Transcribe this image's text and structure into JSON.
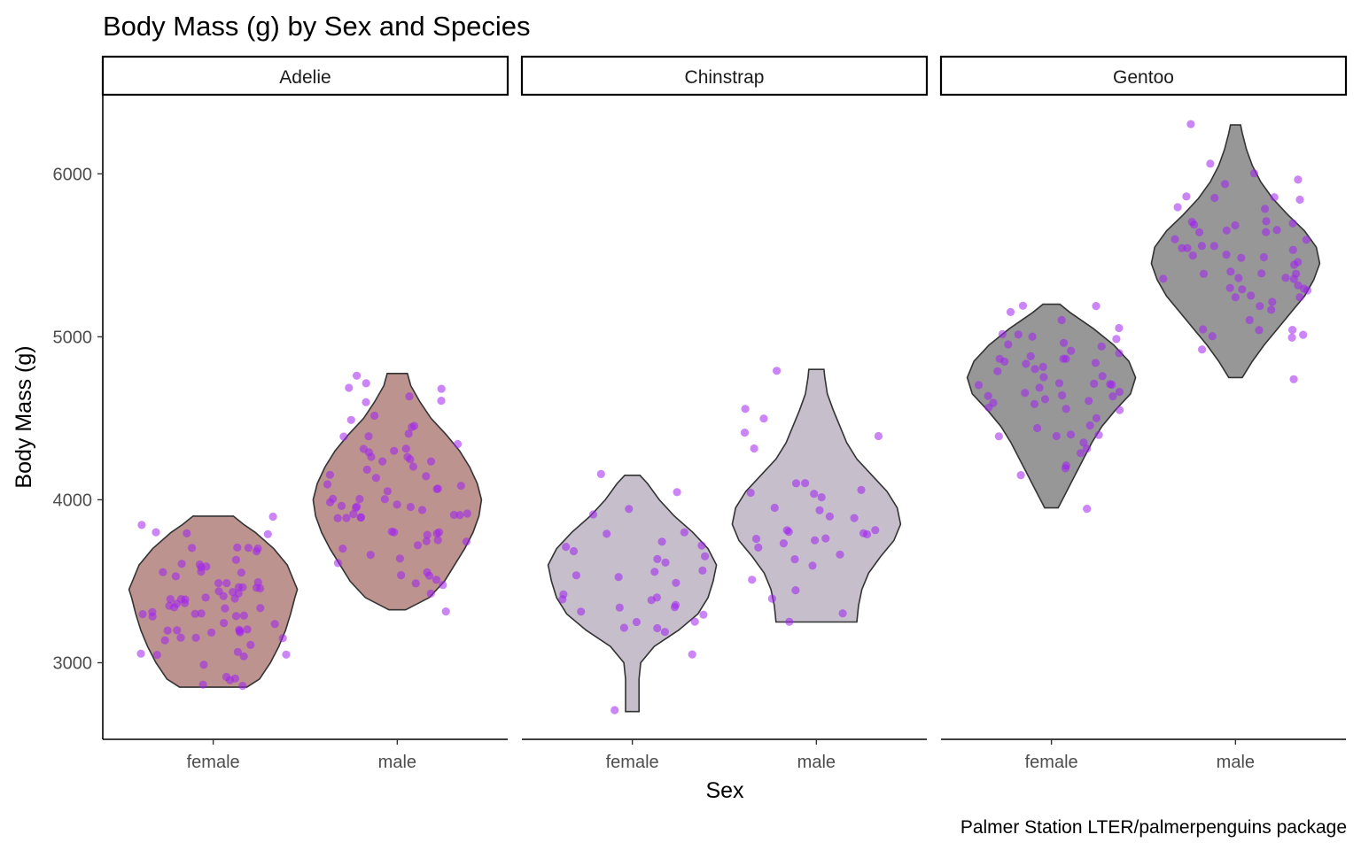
{
  "chart_data": {
    "type": "violin",
    "title": "Body Mass (g) by Sex and Species",
    "xlabel": "Sex",
    "ylabel": "Body Mass (g)",
    "caption": "Palmer Station LTER/palmerpenguins package",
    "ylim": [
      2530,
      6480
    ],
    "yticks": [
      3000,
      4000,
      5000,
      6000
    ],
    "categories": [
      "female",
      "male"
    ],
    "point_color": "#a020f0",
    "facets": [
      {
        "name": "Adelie",
        "fill": "#bc938f",
        "groups": [
          {
            "sex": "female",
            "violin": [
              [
                2850,
                0.4
              ],
              [
                2900,
                0.55
              ],
              [
                3000,
                0.68
              ],
              [
                3100,
                0.78
              ],
              [
                3200,
                0.86
              ],
              [
                3300,
                0.92
              ],
              [
                3400,
                0.97
              ],
              [
                3450,
                1.0
              ],
              [
                3500,
                0.96
              ],
              [
                3600,
                0.88
              ],
              [
                3700,
                0.72
              ],
              [
                3800,
                0.5
              ],
              [
                3850,
                0.36
              ],
              [
                3900,
                0.24
              ]
            ],
            "points": [
              3625,
              3450,
              3200,
              3150,
              3050,
              3700,
              3450,
              3325,
              3400,
              3800,
              3800,
              3200,
              3150,
              3250,
              3300,
              3325,
              3550,
              3300,
              3150,
              3100,
              3000,
              3450,
              3500,
              3450,
              2900,
              3550,
              2850,
              3150,
              3600,
              2850,
              3350,
              3050,
              3600,
              3550,
              3700,
              3450,
              2900,
              3300,
              3400,
              3700,
              3200,
              3350,
              3900,
              3850,
              2900,
              3500,
              3400,
              3050,
              3200,
              3475,
              3250,
              3325,
              3275,
              3600,
              3400,
              3350,
              3600,
              3050,
              3300,
              3700,
              3500,
              3350,
              3200,
              3400,
              3425,
              3300,
              3175,
              3400,
              3200,
              3800,
              3700,
              3525,
              3050
            ]
          },
          {
            "sex": "male",
            "violin": [
              [
                3325,
                0.1
              ],
              [
                3400,
                0.38
              ],
              [
                3500,
                0.56
              ],
              [
                3600,
                0.68
              ],
              [
                3700,
                0.8
              ],
              [
                3800,
                0.9
              ],
              [
                3900,
                0.97
              ],
              [
                4000,
                1.0
              ],
              [
                4100,
                0.95
              ],
              [
                4200,
                0.86
              ],
              [
                4300,
                0.74
              ],
              [
                4400,
                0.58
              ],
              [
                4500,
                0.4
              ],
              [
                4600,
                0.27
              ],
              [
                4700,
                0.16
              ],
              [
                4775,
                0.12
              ]
            ],
            "points": [
              3750,
              3650,
              4675,
              3800,
              4400,
              4500,
              4200,
              3600,
              3950,
              3800,
              3550,
              3950,
              3900,
              3900,
              4150,
              3950,
              4650,
              3900,
              4400,
              4600,
              3425,
              4150,
              4300,
              4050,
              3700,
              3800,
              3750,
              4400,
              4050,
              3950,
              4100,
              4450,
              3900,
              4150,
              4250,
              3900,
              4000,
              4700,
              4200,
              3550,
              3800,
              3950,
              4300,
              4450,
              4300,
              4350,
              4100,
              4725,
              4250,
              3550,
              3900,
              4775,
              4600,
              4275,
              4075,
              3775,
              3325,
              3500,
              3875,
              4000,
              4300,
              4000,
              3500,
              4475,
              3900,
              3975,
              4250,
              3475,
              3725,
              3650,
              4250,
              3750,
              4000
            ]
          }
        ]
      },
      {
        "name": "Chinstrap",
        "fill": "#c6bfcb",
        "groups": [
          {
            "sex": "female",
            "violin": [
              [
                2700,
                0.08
              ],
              [
                2800,
                0.08
              ],
              [
                2900,
                0.08
              ],
              [
                3000,
                0.1
              ],
              [
                3100,
                0.26
              ],
              [
                3200,
                0.55
              ],
              [
                3300,
                0.78
              ],
              [
                3400,
                0.9
              ],
              [
                3500,
                0.96
              ],
              [
                3600,
                1.0
              ],
              [
                3700,
                0.9
              ],
              [
                3800,
                0.72
              ],
              [
                3900,
                0.5
              ],
              [
                4000,
                0.32
              ],
              [
                4100,
                0.18
              ],
              [
                4150,
                0.09
              ]
            ],
            "points": [
              3500,
              3900,
              3650,
              3525,
              3725,
              3950,
              3250,
              3750,
              4150,
              3700,
              3800,
              3775,
              3700,
              4050,
              3575,
              3200,
              3300,
              3200,
              3350,
              3400,
              3050,
              3425,
              3525,
              3650,
              3200,
              3250,
              3400,
              3350,
              2700,
              3600,
              3400,
              3350,
              3550,
              3300
            ]
          },
          {
            "sex": "male",
            "violin": [
              [
                3250,
                0.48
              ],
              [
                3350,
                0.5
              ],
              [
                3450,
                0.54
              ],
              [
                3550,
                0.62
              ],
              [
                3650,
                0.76
              ],
              [
                3750,
                0.92
              ],
              [
                3850,
                1.0
              ],
              [
                3950,
                0.96
              ],
              [
                4050,
                0.84
              ],
              [
                4150,
                0.66
              ],
              [
                4250,
                0.48
              ],
              [
                4350,
                0.36
              ],
              [
                4450,
                0.28
              ],
              [
                4550,
                0.2
              ],
              [
                4650,
                0.13
              ],
              [
                4750,
                0.1
              ],
              [
                4800,
                0.09
              ]
            ],
            "points": [
              3900,
              3650,
              3725,
              3750,
              3700,
              3775,
              4050,
              4050,
              3300,
              4400,
              3400,
              3800,
              3950,
              4800,
              4550,
              3800,
              4100,
              4300,
              3800,
              3950,
              4050,
              3500,
              4400,
              3650,
              3800,
              3450,
              3750,
              3600,
              4000,
              3775,
              3900,
              4100,
              4500,
              3250
            ]
          }
        ]
      },
      {
        "name": "Gentoo",
        "fill": "#979797",
        "groups": [
          {
            "sex": "female",
            "violin": [
              [
                3950,
                0.08
              ],
              [
                4050,
                0.18
              ],
              [
                4150,
                0.28
              ],
              [
                4250,
                0.38
              ],
              [
                4350,
                0.48
              ],
              [
                4450,
                0.6
              ],
              [
                4550,
                0.76
              ],
              [
                4650,
                0.94
              ],
              [
                4750,
                1.0
              ],
              [
                4850,
                0.92
              ],
              [
                4950,
                0.74
              ],
              [
                5050,
                0.5
              ],
              [
                5150,
                0.22
              ],
              [
                5200,
                0.1
              ]
            ],
            "points": [
              4500,
              4450,
              4550,
              4800,
              4400,
              4650,
              4650,
              4200,
              4150,
              4800,
              5000,
              4400,
              5000,
              4600,
              4700,
              5050,
              5150,
              4950,
              4350,
              3950,
              4300,
              4450,
              4300,
              4550,
              4800,
              4900,
              4850,
              4625,
              4850,
              4975,
              4700,
              4575,
              5000,
              4650,
              4375,
              4925,
              4850,
              4875,
              4625,
              4850,
              4975,
              4700,
              4575,
              4750,
              5200,
              4700,
              4200,
              4400,
              4700,
              4650,
              4750,
              4850,
              5200,
              4925,
              4875,
              4600,
              4700,
              5100
            ]
          },
          {
            "sex": "male",
            "violin": [
              [
                4750,
                0.08
              ],
              [
                4850,
                0.2
              ],
              [
                4950,
                0.34
              ],
              [
                5050,
                0.5
              ],
              [
                5150,
                0.66
              ],
              [
                5250,
                0.82
              ],
              [
                5350,
                0.93
              ],
              [
                5450,
                1.0
              ],
              [
                5550,
                0.96
              ],
              [
                5650,
                0.82
              ],
              [
                5750,
                0.62
              ],
              [
                5850,
                0.44
              ],
              [
                5950,
                0.3
              ],
              [
                6050,
                0.2
              ],
              [
                6150,
                0.13
              ],
              [
                6250,
                0.08
              ],
              [
                6300,
                0.06
              ]
            ],
            "points": [
              5700,
              5700,
              5400,
              5200,
              5150,
              5550,
              5850,
              5850,
              6300,
              5350,
              5700,
              5050,
              5100,
              5650,
              5550,
              5250,
              6050,
              5400,
              5250,
              5350,
              5700,
              4750,
              5550,
              5400,
              5300,
              5300,
              5000,
              5050,
              5000,
              5550,
              5300,
              5650,
              5700,
              5800,
              6000,
              5950,
              5450,
              5350,
              5600,
              5300,
              5550,
              5400,
              5650,
              5200,
              4925,
              5250,
              5600,
              5500,
              5500,
              5950,
              5500,
              5800,
              5850,
              5650,
              5000,
              5850,
              5350,
              5450,
              5050,
              5300,
              5500
            ]
          }
        ]
      }
    ]
  }
}
